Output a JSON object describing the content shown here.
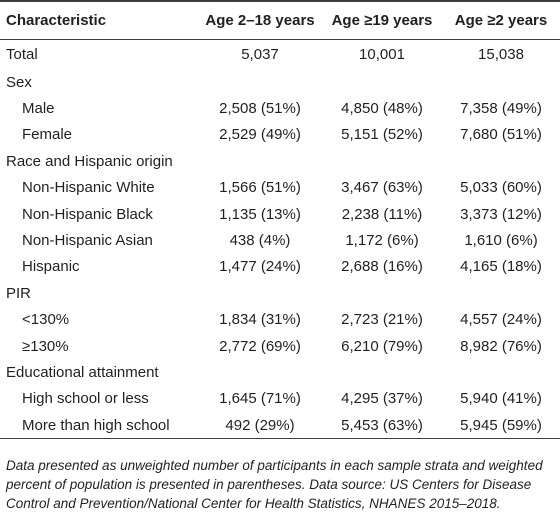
{
  "table": {
    "headers": [
      "Characteristic",
      "Age 2–18 years",
      "Age ≥19 years",
      "Age ≥2 years"
    ],
    "rows": [
      {
        "label": "Total",
        "indent": false,
        "values": [
          "5,037",
          "10,001",
          "15,038"
        ]
      },
      {
        "label": "Sex",
        "indent": false,
        "values": [
          "",
          "",
          ""
        ]
      },
      {
        "label": "Male",
        "indent": true,
        "values": [
          "2,508 (51%)",
          "4,850 (48%)",
          "7,358 (49%)"
        ]
      },
      {
        "label": "Female",
        "indent": true,
        "values": [
          "2,529 (49%)",
          "5,151 (52%)",
          "7,680 (51%)"
        ]
      },
      {
        "label": "Race and Hispanic origin",
        "indent": false,
        "values": [
          "",
          "",
          ""
        ]
      },
      {
        "label": "Non-Hispanic White",
        "indent": true,
        "values": [
          "1,566 (51%)",
          "3,467 (63%)",
          "5,033 (60%)"
        ]
      },
      {
        "label": "Non-Hispanic Black",
        "indent": true,
        "values": [
          "1,135 (13%)",
          "2,238 (11%)",
          "3,373 (12%)"
        ]
      },
      {
        "label": "Non-Hispanic Asian",
        "indent": true,
        "values": [
          "438 (4%)",
          "1,172 (6%)",
          "1,610 (6%)"
        ]
      },
      {
        "label": "Hispanic",
        "indent": true,
        "values": [
          "1,477 (24%)",
          "2,688 (16%)",
          "4,165 (18%)"
        ]
      },
      {
        "label": "PIR",
        "indent": false,
        "values": [
          "",
          "",
          ""
        ]
      },
      {
        "label": "<130%",
        "indent": true,
        "values": [
          "1,834 (31%)",
          "2,723 (21%)",
          "4,557 (24%)"
        ]
      },
      {
        "label": "≥130%",
        "indent": true,
        "values": [
          "2,772 (69%)",
          "6,210 (79%)",
          "8,982 (76%)"
        ]
      },
      {
        "label": "Educational attainment",
        "indent": false,
        "values": [
          "",
          "",
          ""
        ]
      },
      {
        "label": "High school or less",
        "indent": true,
        "values": [
          "1,645 (71%)",
          "4,295 (37%)",
          "5,940 (41%)"
        ]
      },
      {
        "label": "More than high school",
        "indent": true,
        "values": [
          "492 (29%)",
          "5,453 (63%)",
          "5,945 (59%)"
        ]
      }
    ]
  },
  "footnote": "Data presented as unweighted number of participants in each sample strata and weighted percent of population is presented in parentheses. Data source: US Centers for Disease Control and Prevention/National Center for Health Statistics, NHANES 2015–2018."
}
